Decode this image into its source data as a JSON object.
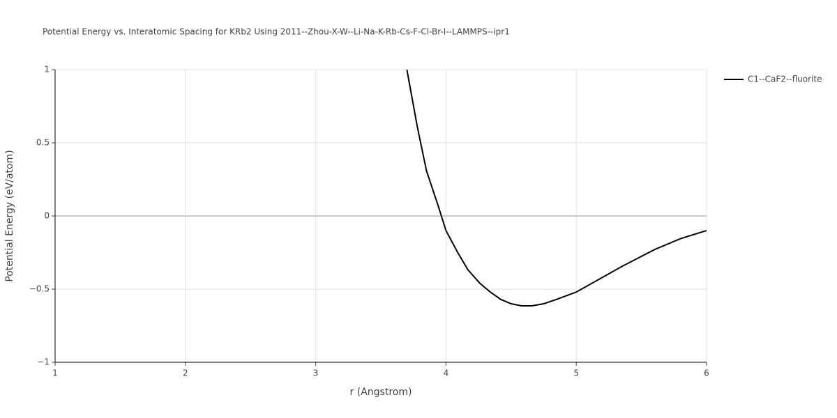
{
  "chart_data": {
    "type": "line",
    "title": "Potential Energy vs. Interatomic Spacing for KRb2 Using 2011--Zhou-X-W--Li-Na-K-Rb-Cs-F-Cl-Br-I--LAMMPS--ipr1",
    "xlabel": "r (Angstrom)",
    "ylabel": "Potential Energy (eV/atom)",
    "x": [
      3.7,
      3.78,
      3.85,
      3.94,
      4.0,
      4.09,
      4.17,
      4.26,
      4.34,
      4.42,
      4.5,
      4.58,
      4.66,
      4.75,
      4.85,
      5.0,
      5.15,
      5.35,
      5.6,
      5.8,
      6.0
    ],
    "series": [
      {
        "name": "C1--CaF2--fluorite",
        "color": "#000000",
        "values": [
          1.0,
          0.61,
          0.31,
          0.07,
          -0.1,
          -0.25,
          -0.37,
          -0.46,
          -0.52,
          -0.57,
          -0.6,
          -0.614,
          -0.614,
          -0.6,
          -0.57,
          -0.52,
          -0.445,
          -0.345,
          -0.23,
          -0.155,
          -0.1
        ]
      }
    ],
    "xlim": [
      1,
      6
    ],
    "xticks": [
      1,
      2,
      3,
      4,
      5,
      6
    ],
    "ylim": [
      -1,
      1
    ],
    "yticks": [
      {
        "value": -1,
        "label": "−1"
      },
      {
        "value": -0.5,
        "label": "−0.5"
      },
      0,
      0.5,
      1
    ],
    "grid": true,
    "legend": "right"
  }
}
